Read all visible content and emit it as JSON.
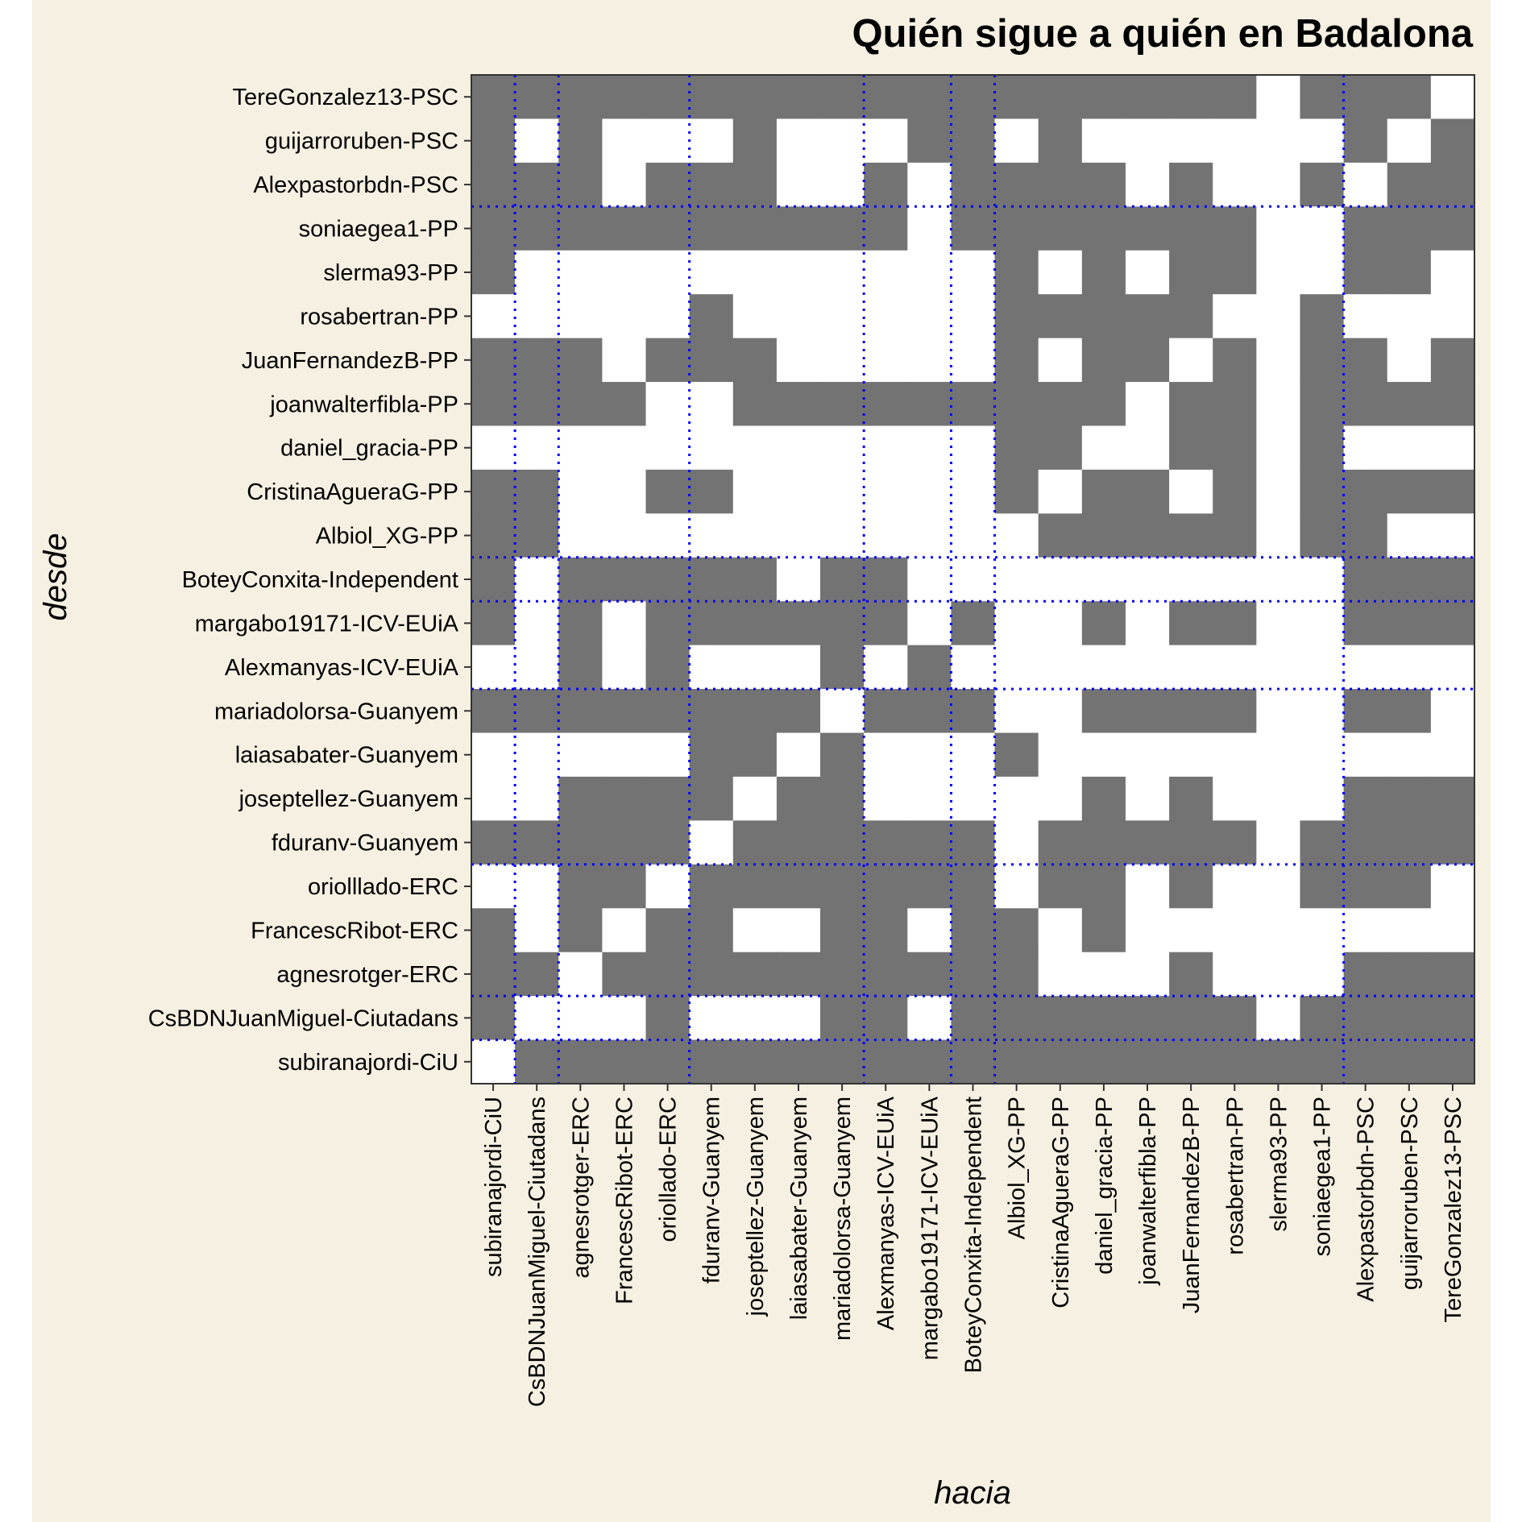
{
  "chart_data": {
    "type": "heatmap",
    "title": "Quién sigue a quién en Badalona",
    "xlabel": "hacia",
    "ylabel": "desde",
    "colors": {
      "follows": "#737373",
      "not_follows": "#ffffff",
      "background": "#f6f0e2",
      "separator": "#0000ff"
    },
    "x_categories": [
      "subiranajordi-CiU",
      "CsBDNJuanMiguel-Ciutadans",
      "agnesrotger-ERC",
      "FrancescRibot-ERC",
      "oriollado-ERC",
      "fduranv-Guanyem",
      "joseptellez-Guanyem",
      "laiasabater-Guanyem",
      "mariadolorsa-Guanyem",
      "Alexmanyas-ICV-EUiA",
      "margabo19171-ICV-EUiA",
      "BoteyConxita-Independent",
      "Albiol_XG-PP",
      "CristinaAgueraG-PP",
      "daniel_gracia-PP",
      "joanwalterfibla-PP",
      "JuanFernandezB-PP",
      "rosabertran-PP",
      "slerma93-PP",
      "soniaegea1-PP",
      "Alexpastorbdn-PSC",
      "guijarroruben-PSC",
      "TereGonzalez13-PSC"
    ],
    "y_categories": [
      "TereGonzalez13-PSC",
      "guijarroruben-PSC",
      "Alexpastorbdn-PSC",
      "soniaegea1-PP",
      "slerma93-PP",
      "rosabertran-PP",
      "JuanFernandezB-PP",
      "joanwalterfibla-PP",
      "daniel_gracia-PP",
      "CristinaAgueraG-PP",
      "Albiol_XG-PP",
      "BoteyConxita-Independent",
      "margabo19171-ICV-EUiA",
      "Alexmanyas-ICV-EUiA",
      "mariadolorsa-Guanyem",
      "laiasabater-Guanyem",
      "joseptellez-Guanyem",
      "fduranv-Guanyem",
      "oriolllado-ERC",
      "FrancescRibot-ERC",
      "agnesrotger-ERC",
      "CsBDNJuanMiguel-Ciutadans",
      "subiranajordi-CiU"
    ],
    "matrix": [
      [
        1,
        1,
        1,
        1,
        1,
        1,
        1,
        1,
        1,
        1,
        1,
        1,
        1,
        1,
        1,
        1,
        1,
        1,
        0,
        1,
        1,
        1,
        0
      ],
      [
        1,
        0,
        1,
        0,
        0,
        0,
        1,
        0,
        0,
        0,
        1,
        1,
        0,
        1,
        0,
        0,
        0,
        0,
        0,
        0,
        1,
        0,
        1
      ],
      [
        1,
        1,
        1,
        0,
        1,
        1,
        1,
        0,
        0,
        1,
        0,
        1,
        1,
        1,
        1,
        0,
        1,
        0,
        0,
        1,
        0,
        1,
        1
      ],
      [
        1,
        1,
        1,
        1,
        1,
        1,
        1,
        1,
        1,
        1,
        0,
        1,
        1,
        1,
        1,
        1,
        1,
        1,
        0,
        0,
        1,
        1,
        1
      ],
      [
        1,
        0,
        0,
        0,
        0,
        0,
        0,
        0,
        0,
        0,
        0,
        0,
        1,
        0,
        1,
        0,
        1,
        1,
        0,
        0,
        1,
        1,
        0
      ],
      [
        0,
        0,
        0,
        0,
        0,
        1,
        0,
        0,
        0,
        0,
        0,
        0,
        1,
        1,
        1,
        1,
        1,
        0,
        0,
        1,
        0,
        0,
        0
      ],
      [
        1,
        1,
        1,
        0,
        1,
        1,
        1,
        0,
        0,
        0,
        0,
        0,
        1,
        0,
        1,
        1,
        0,
        1,
        0,
        1,
        1,
        0,
        1
      ],
      [
        1,
        1,
        1,
        1,
        0,
        0,
        1,
        1,
        1,
        1,
        1,
        1,
        1,
        1,
        1,
        0,
        1,
        1,
        0,
        1,
        1,
        1,
        1
      ],
      [
        0,
        0,
        0,
        0,
        0,
        0,
        0,
        0,
        0,
        0,
        0,
        0,
        1,
        1,
        0,
        0,
        1,
        1,
        0,
        1,
        0,
        0,
        0
      ],
      [
        1,
        1,
        0,
        0,
        1,
        1,
        0,
        0,
        0,
        0,
        0,
        0,
        1,
        0,
        1,
        1,
        0,
        1,
        0,
        1,
        1,
        1,
        1
      ],
      [
        1,
        1,
        0,
        0,
        0,
        0,
        0,
        0,
        0,
        0,
        0,
        0,
        0,
        1,
        1,
        1,
        1,
        1,
        0,
        1,
        1,
        0,
        0
      ],
      [
        1,
        0,
        1,
        1,
        1,
        1,
        1,
        0,
        1,
        1,
        0,
        0,
        0,
        0,
        0,
        0,
        0,
        0,
        0,
        0,
        1,
        1,
        1
      ],
      [
        1,
        0,
        1,
        0,
        1,
        1,
        1,
        1,
        1,
        1,
        0,
        1,
        0,
        0,
        1,
        0,
        1,
        1,
        0,
        0,
        1,
        1,
        1
      ],
      [
        0,
        0,
        1,
        0,
        1,
        0,
        0,
        0,
        1,
        0,
        1,
        0,
        0,
        0,
        0,
        0,
        0,
        0,
        0,
        0,
        0,
        0,
        0
      ],
      [
        1,
        1,
        1,
        1,
        1,
        1,
        1,
        1,
        0,
        1,
        1,
        1,
        0,
        0,
        1,
        1,
        1,
        1,
        0,
        0,
        1,
        1,
        0
      ],
      [
        0,
        0,
        0,
        0,
        0,
        1,
        1,
        0,
        1,
        0,
        0,
        0,
        1,
        0,
        0,
        0,
        0,
        0,
        0,
        0,
        0,
        0,
        0
      ],
      [
        0,
        0,
        1,
        1,
        1,
        1,
        0,
        1,
        1,
        0,
        0,
        0,
        0,
        0,
        1,
        0,
        1,
        0,
        0,
        0,
        1,
        1,
        1
      ],
      [
        1,
        1,
        1,
        1,
        1,
        0,
        1,
        1,
        1,
        1,
        1,
        1,
        0,
        1,
        1,
        1,
        1,
        1,
        0,
        1,
        1,
        1,
        1
      ],
      [
        0,
        0,
        1,
        1,
        0,
        1,
        1,
        1,
        1,
        1,
        1,
        1,
        0,
        1,
        1,
        0,
        1,
        0,
        0,
        1,
        1,
        1,
        0
      ],
      [
        1,
        0,
        1,
        0,
        1,
        1,
        0,
        0,
        1,
        1,
        0,
        1,
        1,
        0,
        1,
        0,
        0,
        0,
        0,
        0,
        0,
        0,
        0
      ],
      [
        1,
        1,
        0,
        1,
        1,
        1,
        1,
        1,
        1,
        1,
        1,
        1,
        1,
        0,
        0,
        0,
        1,
        0,
        0,
        0,
        1,
        1,
        1
      ],
      [
        1,
        0,
        0,
        0,
        1,
        0,
        0,
        0,
        1,
        1,
        0,
        1,
        1,
        1,
        1,
        1,
        1,
        1,
        0,
        1,
        1,
        1,
        1
      ],
      [
        0,
        1,
        1,
        1,
        1,
        1,
        1,
        1,
        1,
        1,
        1,
        1,
        1,
        1,
        1,
        1,
        1,
        1,
        1,
        1,
        1,
        1,
        1
      ]
    ],
    "x_group_boundaries_after_index": [
      0,
      1,
      4,
      8,
      10,
      11,
      19
    ],
    "y_group_boundaries_after_index": [
      2,
      10,
      11,
      13,
      17,
      20,
      21
    ]
  }
}
